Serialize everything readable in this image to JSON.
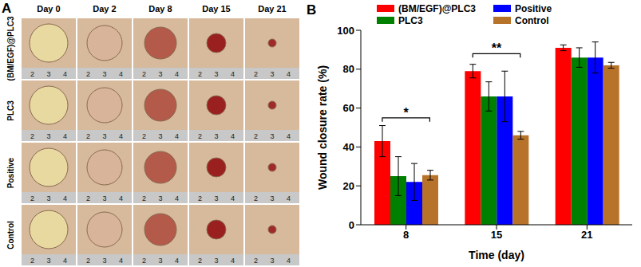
{
  "panel_a": {
    "label": "A",
    "columns": [
      "Day 0",
      "Day 2",
      "Day 8",
      "Day 15",
      "Day 21"
    ],
    "rows": [
      "(BM/EGF)@PLC3",
      "PLC3",
      "Positive",
      "Control"
    ],
    "ruler_labels": [
      "2",
      "3",
      "4"
    ]
  },
  "chart_data": {
    "type": "bar",
    "title": "B",
    "x_label": "Time (day)",
    "y_label": "Wound closure rate (%)",
    "categories": [
      "8",
      "15",
      "21"
    ],
    "series": [
      {
        "name": "(BM/EGF)@PLC3",
        "color": "#ff0000",
        "values": [
          43,
          79,
          91
        ],
        "errors": [
          8,
          3.5,
          1.5
        ]
      },
      {
        "name": "PLC3",
        "color": "#008000",
        "values": [
          25,
          66,
          86
        ],
        "errors": [
          10,
          7.5,
          5
        ]
      },
      {
        "name": "Positive",
        "color": "#0000ff",
        "values": [
          22,
          66,
          86
        ],
        "errors": [
          9.5,
          13,
          8
        ]
      },
      {
        "name": "Control",
        "color": "#b8732a",
        "values": [
          25.5,
          46,
          82
        ],
        "errors": [
          2.5,
          2,
          1.5
        ]
      }
    ],
    "ylim": [
      0,
      100
    ],
    "yticks": [
      0,
      20,
      40,
      60,
      80,
      100
    ],
    "annotations": [
      {
        "text": "*",
        "category": "8",
        "from": "(BM/EGF)@PLC3",
        "to": "Control",
        "y": 55
      },
      {
        "text": "**",
        "category": "15",
        "from": "(BM/EGF)@PLC3",
        "to": "Control",
        "y": 88
      }
    ]
  }
}
